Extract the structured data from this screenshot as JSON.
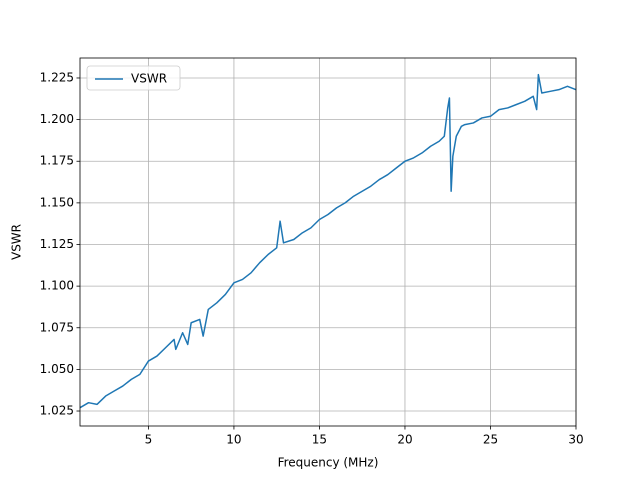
{
  "chart_data": {
    "type": "line",
    "xlabel": "Frequency (MHz)",
    "ylabel": "VSWR",
    "x": [
      1,
      1.5,
      2,
      2.5,
      3,
      3.5,
      4,
      4.5,
      5,
      5.5,
      6,
      6.5,
      6.6,
      7,
      7.3,
      7.5,
      8,
      8.2,
      8.5,
      9,
      9.5,
      10,
      10.5,
      11,
      11.5,
      12,
      12.5,
      12.7,
      12.9,
      13.5,
      14,
      14.5,
      15,
      15.5,
      16,
      16.5,
      17,
      17.5,
      18,
      18.5,
      19,
      19.5,
      20,
      20.5,
      21,
      21.5,
      22,
      22.3,
      22.5,
      22.6,
      22.7,
      22.8,
      23,
      23.3,
      23.5,
      24,
      24.5,
      25,
      25.5,
      26,
      26.5,
      27,
      27.5,
      27.7,
      27.8,
      28,
      28.5,
      29,
      29.5,
      30
    ],
    "series": [
      {
        "name": "VSWR",
        "color": "#1f77b4",
        "values": [
          1.027,
          1.03,
          1.029,
          1.034,
          1.037,
          1.04,
          1.044,
          1.047,
          1.055,
          1.058,
          1.063,
          1.068,
          1.062,
          1.072,
          1.065,
          1.078,
          1.08,
          1.07,
          1.086,
          1.09,
          1.095,
          1.102,
          1.104,
          1.108,
          1.114,
          1.119,
          1.123,
          1.139,
          1.126,
          1.128,
          1.132,
          1.135,
          1.14,
          1.143,
          1.147,
          1.15,
          1.154,
          1.157,
          1.16,
          1.164,
          1.167,
          1.171,
          1.175,
          1.177,
          1.18,
          1.184,
          1.187,
          1.19,
          1.207,
          1.213,
          1.157,
          1.178,
          1.19,
          1.196,
          1.197,
          1.198,
          1.201,
          1.202,
          1.206,
          1.207,
          1.209,
          1.211,
          1.214,
          1.206,
          1.227,
          1.216,
          1.217,
          1.218,
          1.22,
          1.218
        ]
      }
    ],
    "xlim": [
      1,
      30
    ],
    "xticks": [
      5,
      10,
      15,
      20,
      25,
      30
    ],
    "ylim": [
      1.016,
      1.237
    ],
    "yticks": [
      1.025,
      {
        "value": 1.05,
        "label": "1.050"
      },
      1.075,
      {
        "value": 1.1,
        "label": "1.100"
      },
      1.125,
      {
        "value": 1.15,
        "label": "1.150"
      },
      1.175,
      {
        "value": 1.2,
        "label": "1.200"
      },
      1.225
    ],
    "grid": true,
    "legend": "upper left"
  }
}
